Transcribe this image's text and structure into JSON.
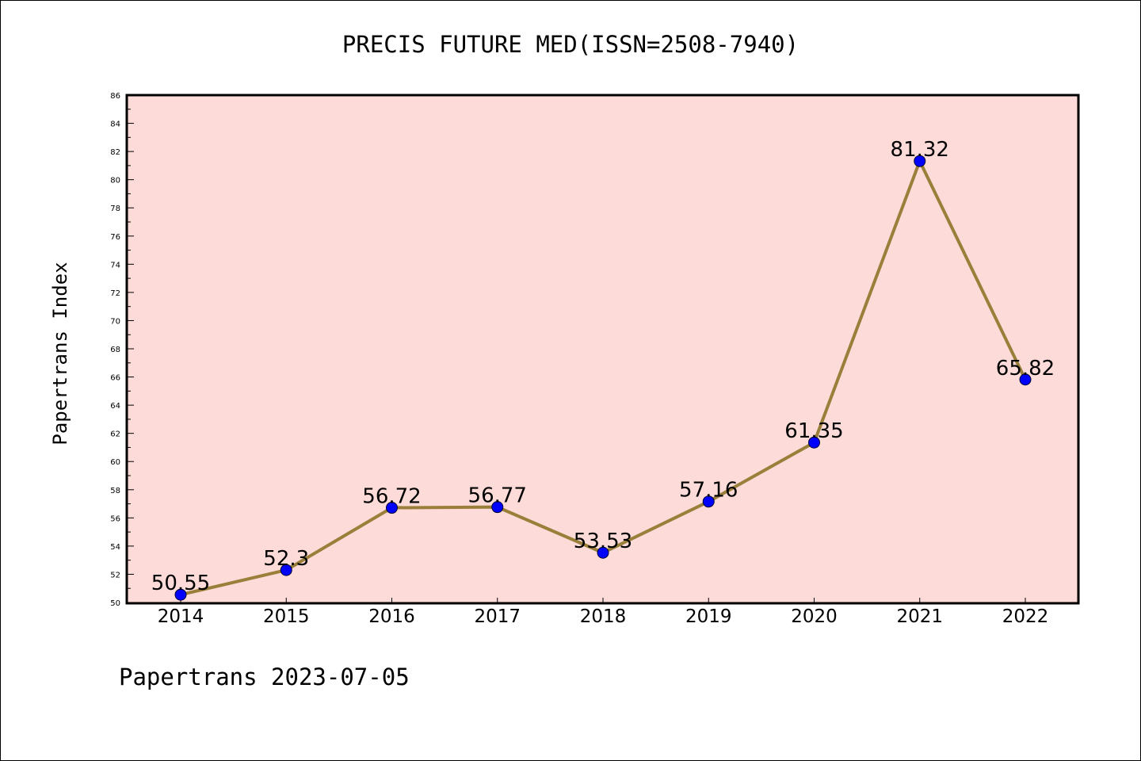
{
  "chart_data": {
    "type": "line",
    "title": "PRECIS FUTURE MED(ISSN=2508-7940)",
    "xlabel": "",
    "ylabel": "Papertrans Index",
    "categories": [
      "2014",
      "2015",
      "2016",
      "2017",
      "2018",
      "2019",
      "2020",
      "2021",
      "2022"
    ],
    "values": [
      50.55,
      52.3,
      56.72,
      56.77,
      53.53,
      57.16,
      61.35,
      81.32,
      65.82
    ],
    "data_labels": [
      "50.55",
      "52.3",
      "56.72",
      "56.77",
      "53.53",
      "57.16",
      "61.35",
      "81.32",
      "65.82"
    ],
    "ylim": [
      50,
      86
    ],
    "yticks": [
      50,
      52,
      54,
      56,
      58,
      60,
      62,
      64,
      66,
      68,
      70,
      72,
      74,
      76,
      78,
      80,
      82,
      84,
      86
    ],
    "grid": false,
    "legend": "none",
    "colors": {
      "plot_background": "#fddbd8",
      "line": "#9a7f3a",
      "marker": "#0000ff"
    }
  },
  "footer": "Papertrans 2023-07-05"
}
